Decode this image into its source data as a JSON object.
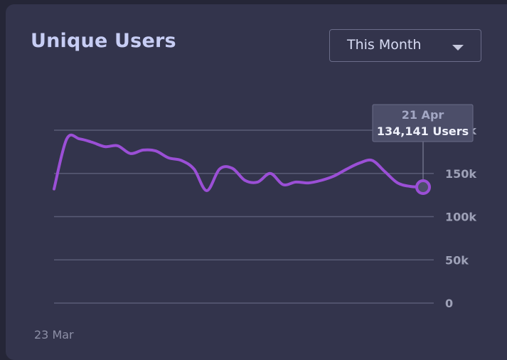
{
  "card": {
    "title": "Unique Users",
    "period_selector": {
      "selected": "This Month"
    }
  },
  "chart_data": {
    "type": "line",
    "x_start_label": "23 Mar",
    "yticks": [
      0,
      50000,
      100000,
      150000,
      200000
    ],
    "ytick_labels": [
      "0",
      "50k",
      "100k",
      "150k",
      "200k"
    ],
    "ylim": [
      0,
      200000
    ],
    "grid": true,
    "series": [
      {
        "color": "#9b4fd6",
        "values": [
          132000,
          190000,
          190000,
          186000,
          181000,
          182000,
          173000,
          177000,
          176000,
          168000,
          165000,
          155000,
          130000,
          155000,
          156000,
          142000,
          140000,
          150000,
          137000,
          140000,
          139000,
          142000,
          147000,
          155000,
          162000,
          165000,
          152000,
          139000,
          135000,
          134141
        ]
      }
    ],
    "tooltip": {
      "date": "21 Apr",
      "value_text": "134,141 Users"
    }
  }
}
